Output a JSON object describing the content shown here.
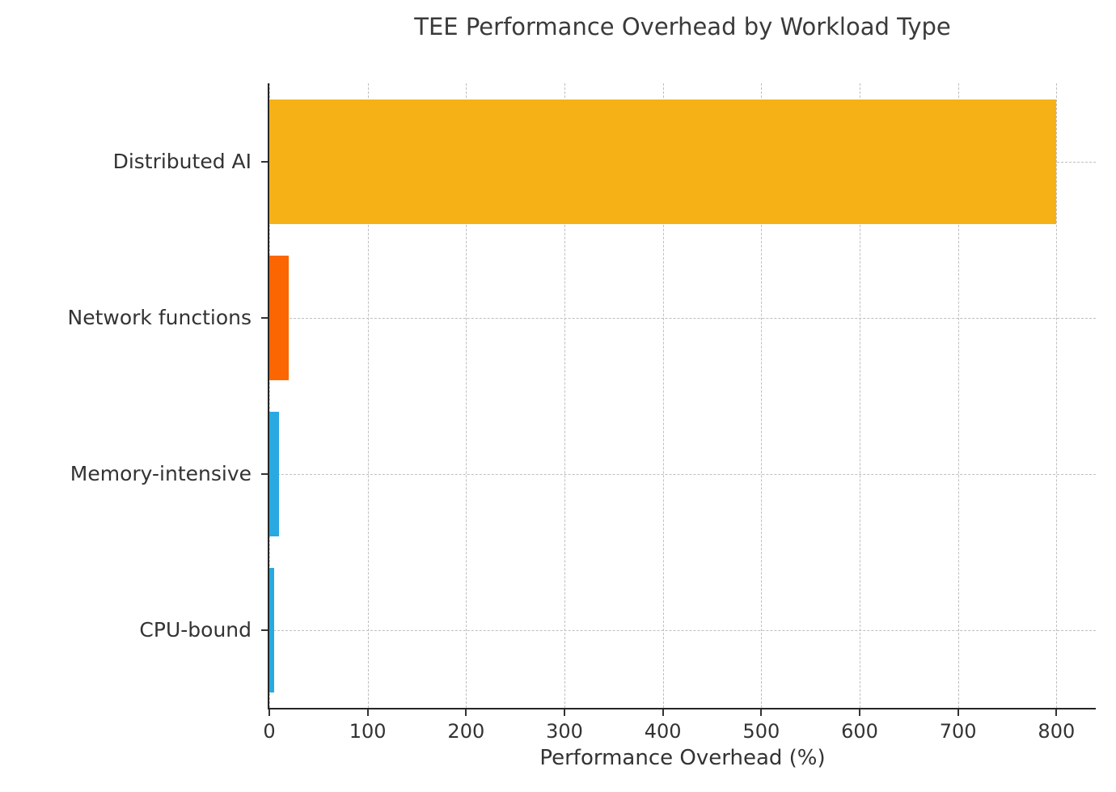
{
  "chart_data": {
    "type": "bar",
    "orientation": "horizontal",
    "title": "TEE Performance Overhead by Workload Type",
    "xlabel": "Performance Overhead (%)",
    "ylabel": "",
    "categories": [
      "Distributed AI",
      "Network functions",
      "Memory-intensive",
      "CPU-bound"
    ],
    "values": [
      800,
      20,
      10,
      5
    ],
    "bar_colors": [
      "#F6B117",
      "#FB6602",
      "#29A9E1",
      "#29A9E1"
    ],
    "x_ticks": [
      0,
      100,
      200,
      300,
      400,
      500,
      600,
      700,
      800
    ],
    "xlim": [
      0,
      840
    ],
    "grid": "dashed",
    "legend": "none",
    "colors": {
      "grid": "#bfbfbf",
      "spine": "#262626",
      "text": "#333333"
    }
  }
}
